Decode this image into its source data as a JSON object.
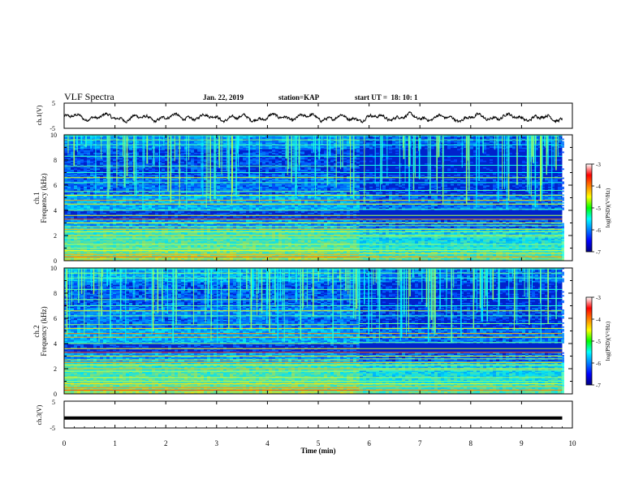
{
  "header": {
    "title": "VLF Spectra",
    "date": "Jan. 22, 2019",
    "station": "station=KAP",
    "start": "start UT =  18: 10: 1"
  },
  "chart_data": [
    {
      "type": "line",
      "panel": "ch1-waveform",
      "ylabel": "ch.1(V)",
      "ylim": [
        -5,
        5
      ],
      "yticks": [
        "5",
        "-5"
      ],
      "xlim": [
        0,
        10
      ],
      "trace_color": "#000000",
      "trace_extent_min": [
        0,
        9.8
      ],
      "amplitude_range_v": [
        -3.0,
        1.5
      ]
    },
    {
      "type": "heatmap",
      "panel": "ch1-spectrogram",
      "ylabel": "ch.1\nFrequency (kHz)",
      "ylabel_line1": "ch.1",
      "ylabel_line2": "Frequency (kHz)",
      "ylim": [
        0,
        10
      ],
      "yticks": [
        "0",
        "2",
        "4",
        "6",
        "8",
        "10"
      ],
      "xlim": [
        0,
        10
      ],
      "data_extent_min": [
        0,
        9.8
      ],
      "change_times_min": [
        2.6,
        5.8
      ],
      "colorbar": {
        "label": "log(PSD)(V²/Hz)",
        "range": [
          -7,
          -3
        ],
        "ticks": [
          "-3",
          "-4",
          "-5",
          "-6",
          "-7"
        ]
      }
    },
    {
      "type": "heatmap",
      "panel": "ch2-spectrogram",
      "ylabel": "ch.2\nFrequency (kHz)",
      "ylabel_line1": "ch.2",
      "ylabel_line2": "Frequency (kHz)",
      "ylim": [
        0,
        10
      ],
      "yticks": [
        "0",
        "2",
        "4",
        "6",
        "8",
        "10"
      ],
      "xlim": [
        0,
        10
      ],
      "data_extent_min": [
        0,
        9.8
      ],
      "change_times_min": [
        2.6,
        5.8
      ],
      "colorbar": {
        "label": "log(PSD)(V²/Hz)",
        "range": [
          -7,
          -3
        ],
        "ticks": [
          "-3",
          "-4",
          "-5",
          "-6",
          "-7"
        ]
      }
    },
    {
      "type": "line",
      "panel": "ch3-waveform",
      "ylabel": "ch.3(V)",
      "ylim": [
        -5,
        5
      ],
      "yticks": [
        "5",
        "-5"
      ],
      "xlim": [
        0,
        10
      ],
      "xlabel": "Time (min)",
      "xticks": [
        "0",
        "1",
        "2",
        "3",
        "4",
        "5",
        "6",
        "7",
        "8",
        "9",
        "10"
      ],
      "trace_color": "#000000",
      "constant_value_v": -1.3,
      "trace_extent_min": [
        0,
        9.8
      ]
    }
  ]
}
